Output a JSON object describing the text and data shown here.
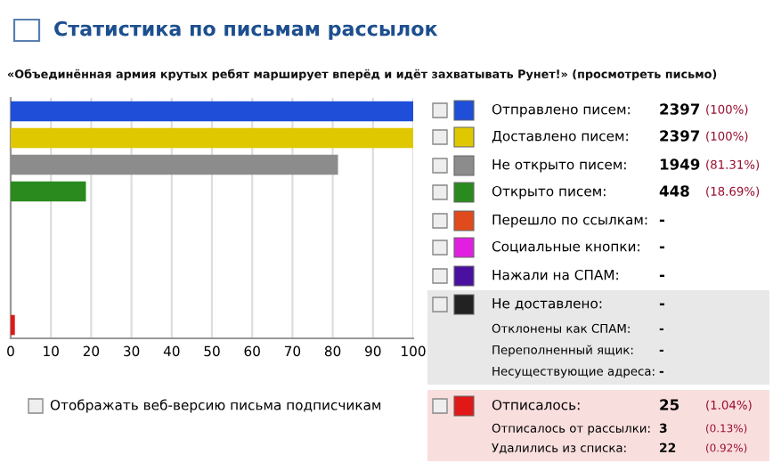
{
  "chart_data": {
    "type": "bar",
    "orientation": "horizontal",
    "title": "Статистика по письмам рассылок",
    "subtitle": "«Объединённая армия крутых ребят марширует вперёд и идёт захватывать Рунет!» (просмотреть письмо)",
    "categories": [
      null,
      null,
      null,
      null,
      null,
      null,
      null,
      null,
      null
    ],
    "values": [
      100,
      100,
      81.31,
      18.69,
      0,
      0,
      0,
      0,
      1.04
    ],
    "colors": [
      "#1f4fd8",
      "#e0c800",
      "#8c8c8c",
      "#2a8a1e",
      "#e04a1c",
      "#e020e0",
      "#4a10a0",
      "#222222",
      "#e01818"
    ],
    "xlim": [
      0,
      100
    ],
    "xticks": [
      0,
      10,
      20,
      30,
      40,
      50,
      60,
      70,
      80,
      90,
      100
    ],
    "grid": "x",
    "annotations": [
      "Отображать веб-версию письма подписчикам",
      "Отправлено писем:",
      "2397",
      "(100%)",
      "Доставлено писем:",
      "2397",
      "(100%)",
      "Не открыто писем:",
      "1949",
      "(81.31%)",
      "Открыто писем:",
      "448",
      "(18.69%)",
      "Перешло по ссылкам:",
      "-",
      "Социальные кнопки:",
      "-",
      "Нажали на СПАМ:",
      "-",
      "Не доставлено:",
      "-",
      "Отклонены как СПАМ:",
      "-",
      "Переполненный ящик:",
      "-",
      "Несуществующие адреса:",
      "-",
      "Отписалось:",
      "25",
      "(1.04%)",
      "Отписалось от рассылки:",
      "3",
      "(0.13%)",
      "Удалились из списка:",
      "22",
      "(0.92%)"
    ]
  }
}
